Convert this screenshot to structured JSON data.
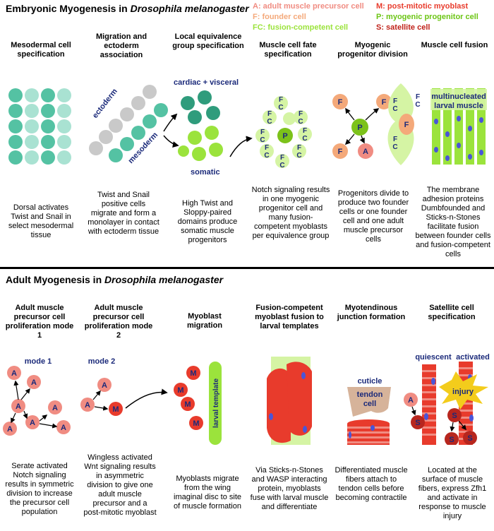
{
  "top": {
    "title_prefix": "Embryonic Myogenesis in ",
    "title_species": "Drosophila melanogaster"
  },
  "legend": {
    "a": "A: adult muscle precursor cell",
    "f": "F: founder cell",
    "fc": "FC: fusion-competent cell",
    "m": "M: post-mitotic myoblast",
    "p": "P: myogenic progenitor cell",
    "s": "S: satellite cell"
  },
  "colors": {
    "teal": "#54c2a3",
    "teal_light": "#a9e2d2",
    "gray": "#c9c9c9",
    "dark_teal": "#2f9c7c",
    "green": "#9be33c",
    "light_green": "#d5f4a4",
    "orange": "#f4a97a",
    "salmon": "#f08c82",
    "red": "#e83b2c",
    "dark_red": "#b7261e",
    "navy": "#1b2a7a",
    "blue_dot": "#4a55d8",
    "tan": "#d6b39a",
    "yellow": "#f3cc1c"
  },
  "embryonic": {
    "columns": [
      {
        "title": "Mesodermal cell specification",
        "desc": "Dorsal activates Twist and Snail in select mesodermal tissue"
      },
      {
        "title": "Migration and ectoderm association",
        "desc": "Twist and Snail positive cells migrate and form a monolayer in contact with ectoderm tissue"
      },
      {
        "title": "Local equivalence group specification",
        "desc": "High Twist and Sloppy-paired domains produce somatic muscle progenitors"
      },
      {
        "title": "Muscle cell fate specification",
        "desc": "Notch signaling results in one myogenic progenitor cell and many fusion-competent myoblasts per equivalence group"
      },
      {
        "title": "Myogenic progenitor division",
        "desc": "Progenitors divide to produce two founder cells or one founder cell and one adult muscle precursor cells"
      },
      {
        "title": "Muscle cell fusion",
        "desc": "The membrane adhesion proteins Dumbfounded and Sticks-n-Stones facilitate fusion between founder cells and fusion-competent cells"
      }
    ],
    "labels": {
      "ectoderm": "ectoderm",
      "mesoderm": "mesoderm",
      "cardiac": "cardiac + visceral",
      "somatic": "somatic",
      "multinucleated": "multinucleated",
      "larval_muscle": "larval muscle"
    }
  },
  "adult": {
    "title_prefix": "Adult Myogenesis in ",
    "title_species": "Drosophila melanogaster",
    "columns": [
      {
        "title": "Adult muscle precursor cell proliferation mode 1",
        "desc": "Serate activated Notch signaling results in symmetric division to increase the precursor cell population"
      },
      {
        "title": "Adult muscle precursor cell proliferation mode 2",
        "desc": "Wingless activated Wnt signaling results in asymmetric division to give one adult muscle precursor and a post-mitotic myoblast"
      },
      {
        "title": "Myoblast migration",
        "desc": "Myoblasts migrate from the wing imaginal disc to site of muscle formation"
      },
      {
        "title": "Fusion-competent myoblast fusion to larval templates",
        "desc": "Via Sticks-n-Stones and WASP interacting protein, myoblasts fuse with larval muscle and differentiate"
      },
      {
        "title": "Myotendinous junction formation",
        "desc": "Differentiated muscle fibers attach to tendon cells before becoming contractile"
      },
      {
        "title": "Satellite cell specification",
        "desc": "Located at the surface of muscle fibers, express Zfh1 and activate in response to muscle injury"
      }
    ],
    "labels": {
      "mode1": "mode 1",
      "mode2": "mode 2",
      "larval_template": "larval template",
      "cuticle": "cuticle",
      "tendon": "tendon",
      "cell": "cell",
      "quiescent": "quiescent",
      "activated": "activated",
      "injury": "injury"
    }
  },
  "cell_letters": {
    "a": "A",
    "f": "F",
    "c": "C",
    "p": "P",
    "m": "M",
    "s": "S"
  }
}
